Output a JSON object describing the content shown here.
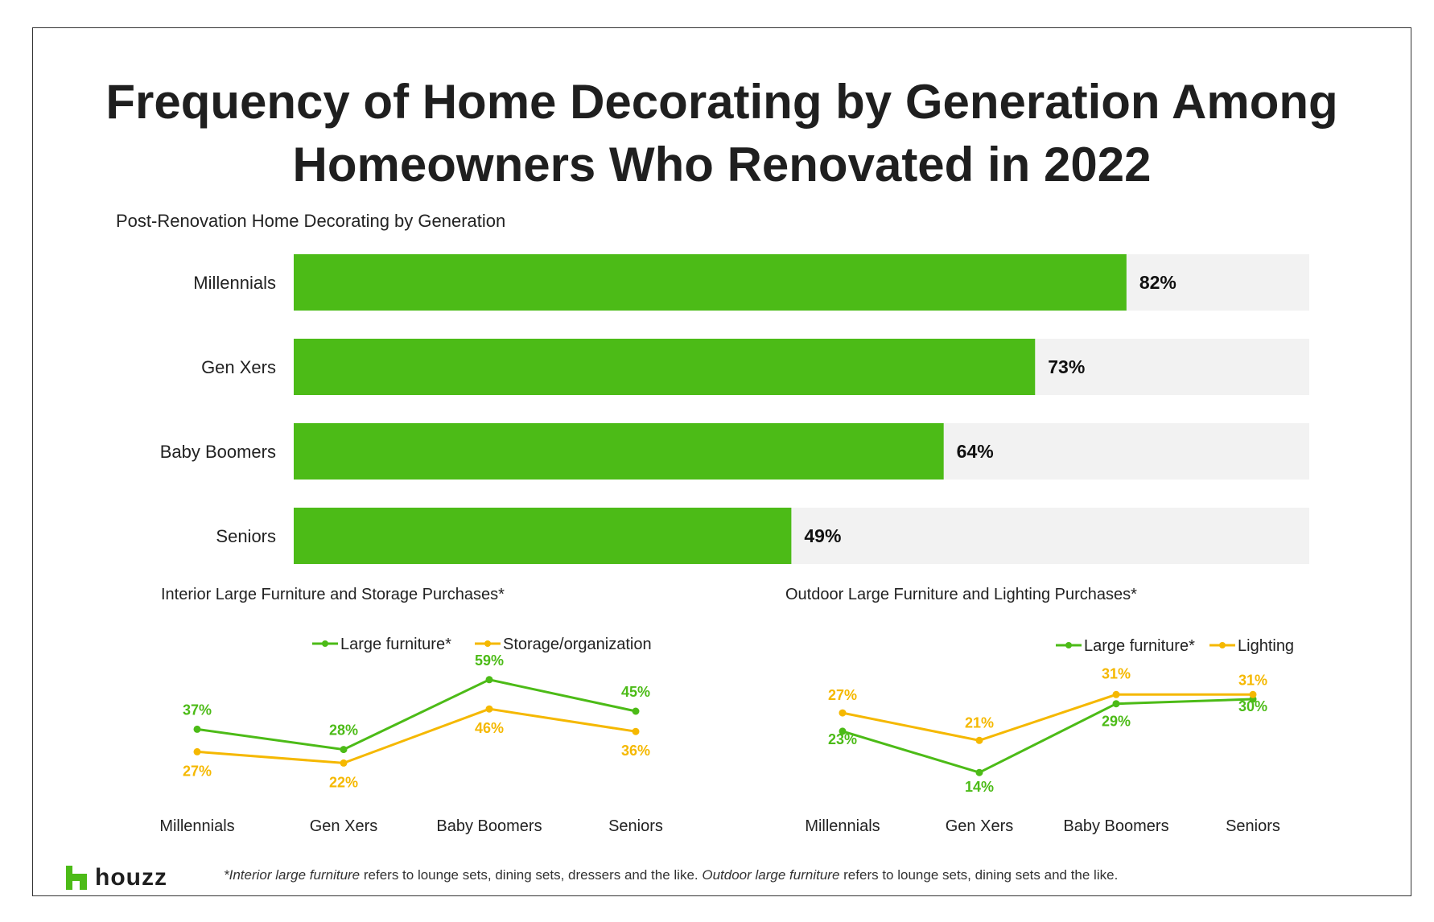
{
  "page": {
    "title_line1": "Frequency of Home Decorating by Generation Among",
    "title_line2": "Homeowners Who Renovated in 2022",
    "logo_text": "houzz",
    "footnote": {
      "part1_italic": "*Interior large furniture",
      "part2": " refers to lounge sets, dining sets, dressers and the like. ",
      "part3_italic": "Outdoor large furniture",
      "part4": " refers to lounge sets, dining sets and the like."
    }
  },
  "colors": {
    "green": "#4cbb17",
    "yellow": "#f5b800",
    "track": "#f2f2f2",
    "text": "#222222"
  },
  "chart_data": [
    {
      "type": "bar",
      "orientation": "horizontal",
      "title": "Post-Renovation Home Decorating by Generation",
      "categories": [
        "Millennials",
        "Gen Xers",
        "Baby Boomers",
        "Seniors"
      ],
      "values": [
        82,
        73,
        64,
        49
      ],
      "value_labels": [
        "82%",
        "73%",
        "64%",
        "49%"
      ],
      "xlim": [
        0,
        100
      ],
      "grid": false
    },
    {
      "type": "line",
      "title": "Interior Large Furniture and Storage Purchases*",
      "categories": [
        "Millennials",
        "Gen Xers",
        "Baby Boomers",
        "Seniors"
      ],
      "legend_position": "top",
      "series": [
        {
          "name": "Large furniture*",
          "color": "#4cbb17",
          "values": [
            37,
            28,
            59,
            45
          ],
          "labels": [
            "37%",
            "28%",
            "59%",
            "45%"
          ]
        },
        {
          "name": "Storage/organization",
          "color": "#f5b800",
          "values": [
            27,
            22,
            46,
            36
          ],
          "labels": [
            "27%",
            "22%",
            "46%",
            "36%"
          ]
        }
      ],
      "grid": false
    },
    {
      "type": "line",
      "title": "Outdoor Large Furniture and Lighting Purchases*",
      "categories": [
        "Millennials",
        "Gen Xers",
        "Baby Boomers",
        "Seniors"
      ],
      "legend_position": "top-right",
      "series": [
        {
          "name": "Large furniture*",
          "color": "#4cbb17",
          "values": [
            23,
            14,
            29,
            30
          ],
          "labels": [
            "23%",
            "14%",
            "29%",
            "30%"
          ]
        },
        {
          "name": "Lighting",
          "color": "#f5b800",
          "values": [
            27,
            21,
            31,
            31
          ],
          "labels": [
            "27%",
            "21%",
            "31%",
            "31%"
          ]
        }
      ],
      "grid": false
    }
  ]
}
